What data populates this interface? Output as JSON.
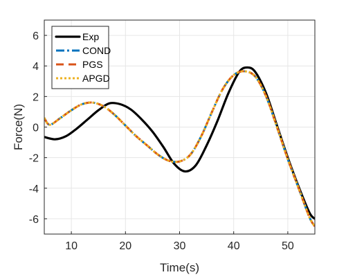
{
  "chart_data": {
    "type": "line",
    "title": "",
    "xlabel": "Time(s)",
    "ylabel": "Force(N)",
    "xlim": [
      5,
      55
    ],
    "ylim": [
      -7,
      7
    ],
    "xticks": [
      10,
      20,
      30,
      40,
      50
    ],
    "yticks": [
      -6,
      -4,
      -2,
      0,
      2,
      4,
      6
    ],
    "grid": true,
    "legend_position": "top-left",
    "series": [
      {
        "name": "Exp",
        "color": "#000000",
        "style": "solid",
        "points": [
          [
            5,
            -0.65
          ],
          [
            7,
            -0.8
          ],
          [
            9,
            -0.6
          ],
          [
            11,
            -0.1
          ],
          [
            13,
            0.5
          ],
          [
            15,
            1.1
          ],
          [
            17,
            1.55
          ],
          [
            19,
            1.5
          ],
          [
            21,
            1.15
          ],
          [
            23,
            0.5
          ],
          [
            25,
            -0.3
          ],
          [
            27,
            -1.3
          ],
          [
            29,
            -2.4
          ],
          [
            31,
            -2.9
          ],
          [
            33,
            -2.5
          ],
          [
            35,
            -1.2
          ],
          [
            37,
            0.4
          ],
          [
            39,
            2.2
          ],
          [
            41,
            3.6
          ],
          [
            42.5,
            3.9
          ],
          [
            44,
            3.6
          ],
          [
            46,
            2.2
          ],
          [
            48,
            0.1
          ],
          [
            50,
            -2.0
          ],
          [
            52,
            -3.9
          ],
          [
            54,
            -5.6
          ],
          [
            55,
            -6.0
          ]
        ]
      },
      {
        "name": "COND",
        "color": "#0072BD",
        "style": "dashdot",
        "points": [
          [
            5,
            0.6
          ],
          [
            6,
            0.15
          ],
          [
            8,
            0.6
          ],
          [
            10,
            1.1
          ],
          [
            12,
            1.5
          ],
          [
            14,
            1.6
          ],
          [
            16,
            1.35
          ],
          [
            18,
            0.8
          ],
          [
            20,
            0.1
          ],
          [
            22,
            -0.6
          ],
          [
            24,
            -1.2
          ],
          [
            26,
            -1.8
          ],
          [
            28,
            -2.2
          ],
          [
            30,
            -2.25
          ],
          [
            32,
            -1.8
          ],
          [
            34,
            -0.6
          ],
          [
            36,
            1.0
          ],
          [
            38,
            2.5
          ],
          [
            40,
            3.4
          ],
          [
            42,
            3.65
          ],
          [
            44,
            3.3
          ],
          [
            46,
            2.0
          ],
          [
            48,
            0.0
          ],
          [
            50,
            -2.1
          ],
          [
            52,
            -4.0
          ],
          [
            54,
            -5.9
          ],
          [
            55,
            -6.5
          ]
        ]
      },
      {
        "name": "PGS",
        "color": "#D95319",
        "style": "dashed",
        "points": [
          [
            5,
            0.6
          ],
          [
            6,
            0.15
          ],
          [
            8,
            0.6
          ],
          [
            10,
            1.1
          ],
          [
            12,
            1.5
          ],
          [
            14,
            1.6
          ],
          [
            16,
            1.35
          ],
          [
            18,
            0.8
          ],
          [
            20,
            0.1
          ],
          [
            22,
            -0.6
          ],
          [
            24,
            -1.2
          ],
          [
            26,
            -1.8
          ],
          [
            28,
            -2.2
          ],
          [
            30,
            -2.25
          ],
          [
            32,
            -1.8
          ],
          [
            34,
            -0.6
          ],
          [
            36,
            1.0
          ],
          [
            38,
            2.5
          ],
          [
            40,
            3.4
          ],
          [
            42,
            3.65
          ],
          [
            44,
            3.3
          ],
          [
            46,
            2.0
          ],
          [
            48,
            0.0
          ],
          [
            50,
            -2.1
          ],
          [
            52,
            -4.0
          ],
          [
            54,
            -5.9
          ],
          [
            55,
            -6.5
          ]
        ]
      },
      {
        "name": "APGD",
        "color": "#EDB120",
        "style": "dotted",
        "points": [
          [
            5,
            0.6
          ],
          [
            6,
            0.15
          ],
          [
            8,
            0.6
          ],
          [
            10,
            1.1
          ],
          [
            12,
            1.5
          ],
          [
            14,
            1.6
          ],
          [
            16,
            1.35
          ],
          [
            18,
            0.8
          ],
          [
            20,
            0.1
          ],
          [
            22,
            -0.6
          ],
          [
            24,
            -1.2
          ],
          [
            26,
            -1.8
          ],
          [
            28,
            -2.2
          ],
          [
            30,
            -2.25
          ],
          [
            32,
            -1.8
          ],
          [
            34,
            -0.6
          ],
          [
            36,
            1.0
          ],
          [
            38,
            2.5
          ],
          [
            40,
            3.4
          ],
          [
            42,
            3.65
          ],
          [
            44,
            3.3
          ],
          [
            46,
            2.0
          ],
          [
            48,
            0.0
          ],
          [
            50,
            -2.1
          ],
          [
            52,
            -4.0
          ],
          [
            54,
            -5.9
          ],
          [
            55,
            -6.5
          ]
        ]
      }
    ]
  }
}
